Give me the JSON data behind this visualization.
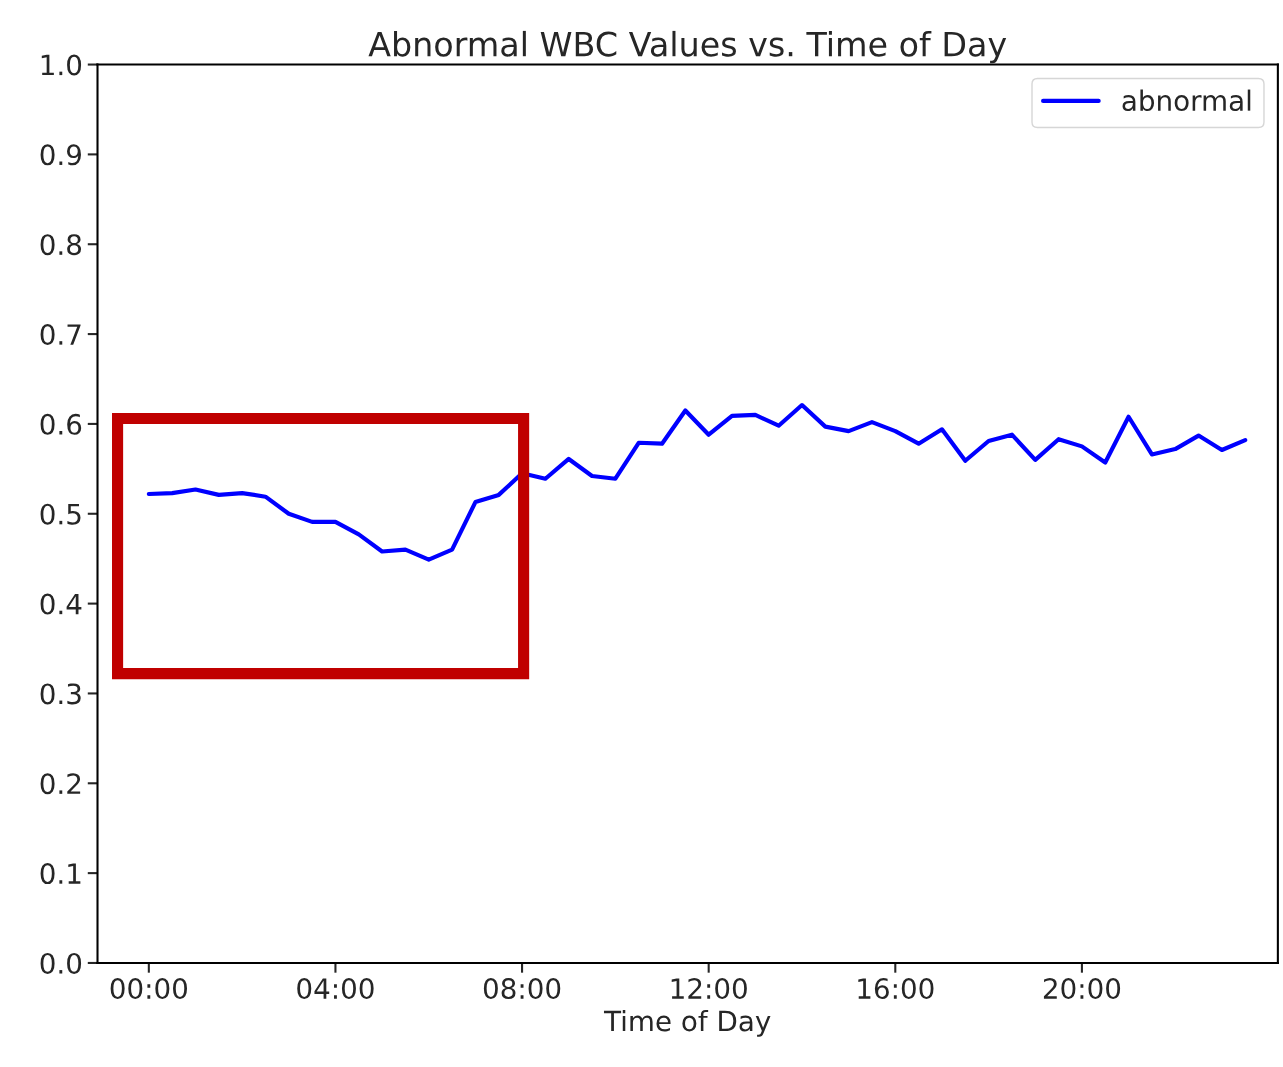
{
  "chart_data": {
    "type": "line",
    "title": "Abnormal WBC Values vs. Time of Day",
    "xlabel": "Time of Day",
    "x": [
      0,
      0.5,
      1,
      1.5,
      2,
      2.5,
      3,
      3.5,
      4,
      4.5,
      5,
      5.5,
      6,
      6.5,
      7,
      7.5,
      8,
      8.5,
      9,
      9.5,
      10,
      10.5,
      11,
      11.5,
      12,
      12.5,
      13,
      13.5,
      14,
      14.5,
      15,
      15.5,
      16,
      16.5,
      17,
      17.5,
      18,
      18.5,
      19,
      19.5,
      20,
      20.5,
      21,
      21.5,
      22,
      22.5,
      23,
      23.5
    ],
    "series": [
      {
        "name": "abnormal",
        "color": "#0000ff",
        "values": [
          0.522,
          0.523,
          0.527,
          0.521,
          0.523,
          0.519,
          0.5,
          0.491,
          0.491,
          0.477,
          0.458,
          0.46,
          0.449,
          0.46,
          0.513,
          0.521,
          0.545,
          0.539,
          0.561,
          0.542,
          0.539,
          0.579,
          0.578,
          0.615,
          0.588,
          0.609,
          0.61,
          0.598,
          0.621,
          0.597,
          0.592,
          0.602,
          0.592,
          0.578,
          0.594,
          0.559,
          0.581,
          0.588,
          0.56,
          0.583,
          0.575,
          0.557,
          0.608,
          0.566,
          0.572,
          0.587,
          0.571,
          0.582
        ]
      }
    ],
    "xlim": [
      -1.1,
      24.2
    ],
    "ylim": [
      0.0,
      1.0
    ],
    "xticks": [
      {
        "value": 0,
        "label": "00:00"
      },
      {
        "value": 4,
        "label": "04:00"
      },
      {
        "value": 8,
        "label": "08:00"
      },
      {
        "value": 12,
        "label": "12:00"
      },
      {
        "value": 16,
        "label": "16:00"
      },
      {
        "value": 20,
        "label": "20:00"
      }
    ],
    "yticks": [
      {
        "value": 0,
        "label": "0.0"
      },
      0.1,
      0.2,
      0.3,
      0.4,
      0.5,
      0.6,
      0.7,
      0.8,
      0.9,
      {
        "value": 1,
        "label": "1.0"
      }
    ],
    "legend": "top right",
    "grid": false,
    "marker": "none",
    "line_style": "solid"
  }
}
